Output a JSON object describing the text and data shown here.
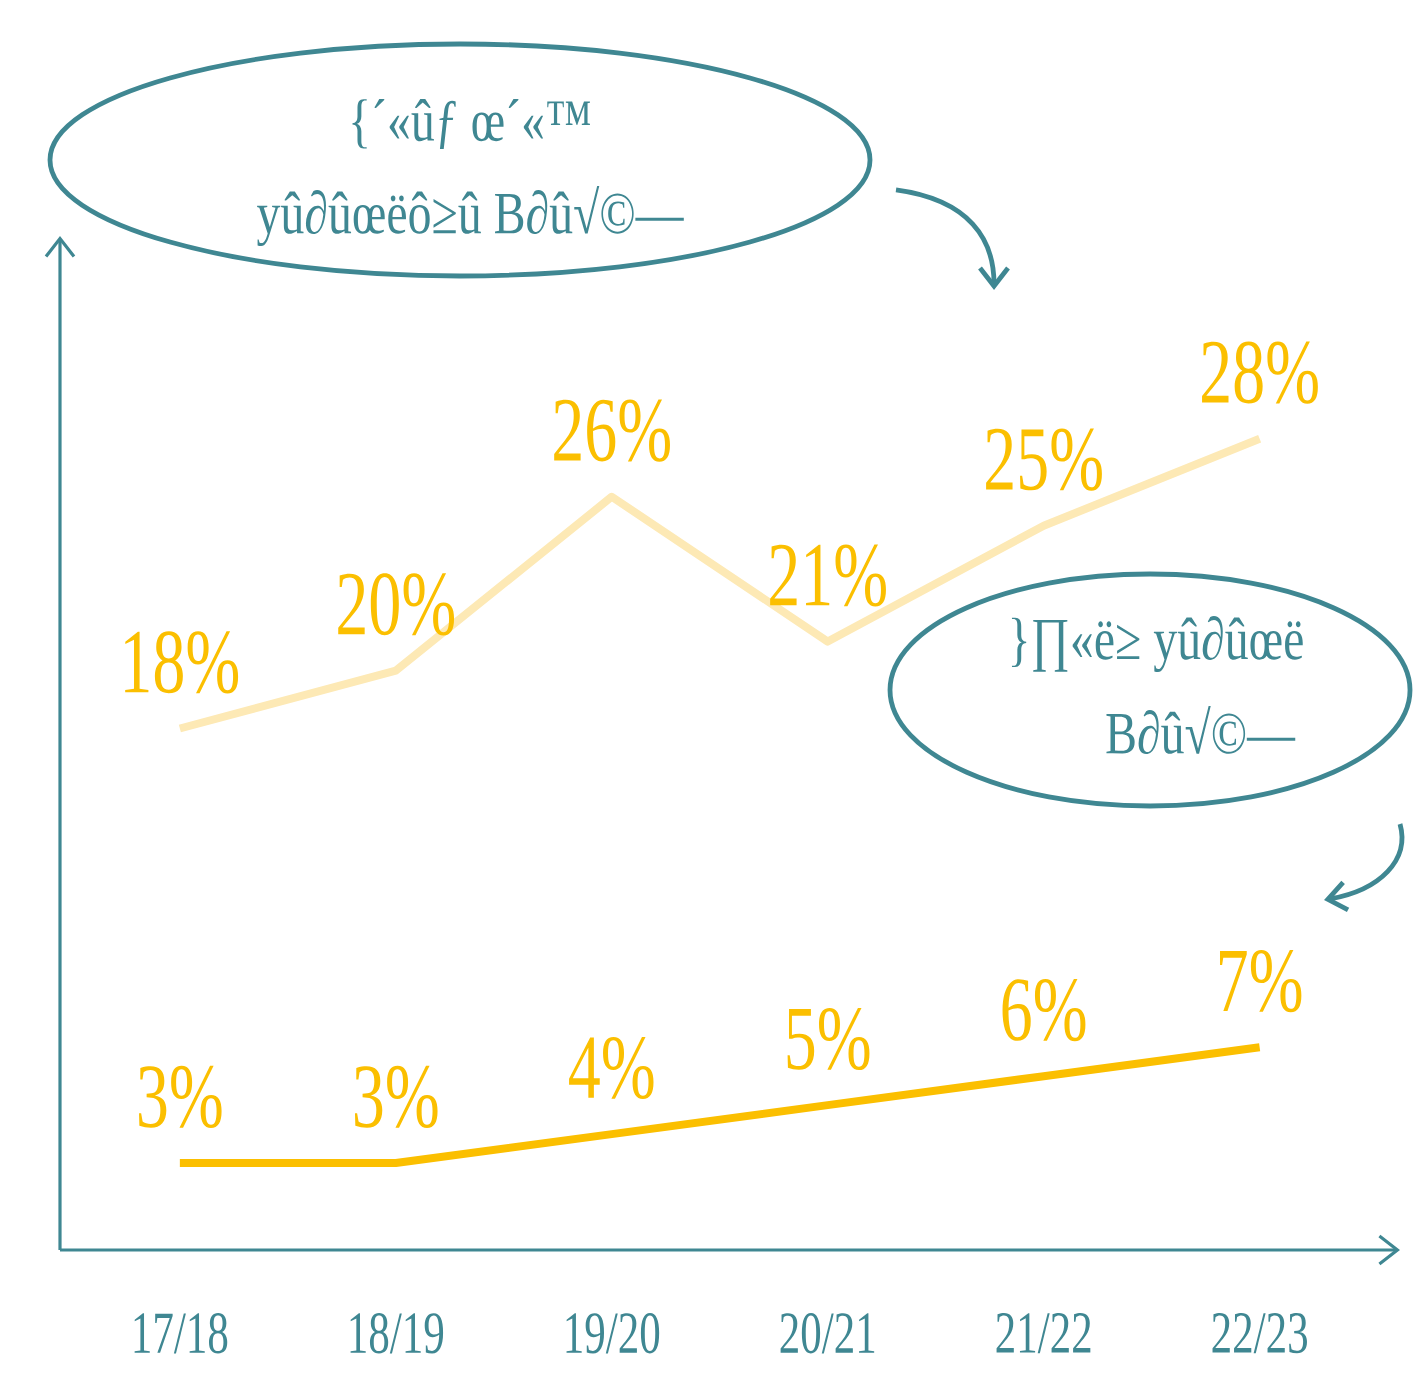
{
  "chart_data": {
    "type": "line",
    "categories": [
      "17/18",
      "18/19",
      "19/20",
      "20/21",
      "21/22",
      "22/23"
    ],
    "series": [
      {
        "color": "#fde9b5",
        "values": [
          18,
          20,
          26,
          21,
          25,
          28
        ],
        "value_labels": [
          "18%",
          "20%",
          "26%",
          "21%",
          "25%",
          "28%"
        ]
      },
      {
        "color": "#fbbf00",
        "values": [
          3,
          3,
          4,
          5,
          6,
          7
        ],
        "value_labels": [
          "3%",
          "3%",
          "4%",
          "5%",
          "6%",
          "7%"
        ]
      }
    ],
    "ylim": [
      0,
      35
    ],
    "tick_labels": "x",
    "marker": "none",
    "annotations": [
      "{´«ûƒ œ´«™",
      "yû∂ûœëô≥û B∂û√©—",
      "}∏«ë≥ yû∂ûœë",
      "B∂û√©—"
    ]
  }
}
